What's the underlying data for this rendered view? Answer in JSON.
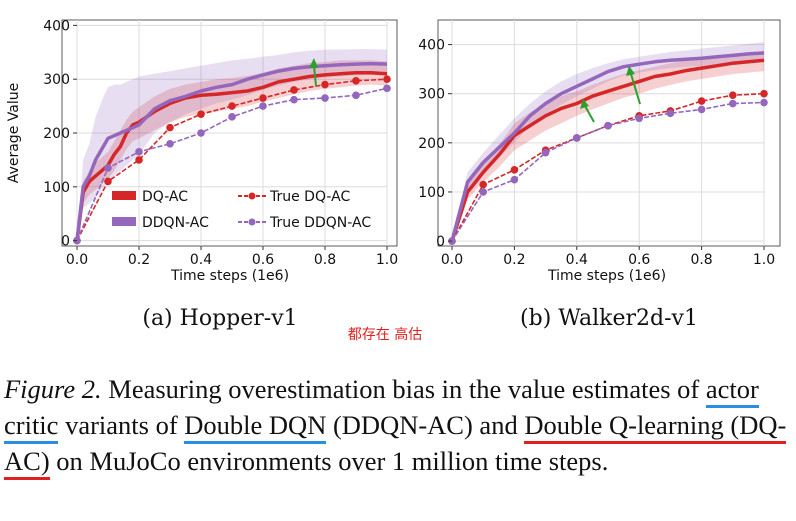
{
  "chart_data": [
    {
      "type": "line",
      "subtitle": "(a) Hopper-v1",
      "xlabel": "Time steps (1e6)",
      "ylabel": "Average Value",
      "xlim": [
        0,
        1.0
      ],
      "ylim": [
        -10,
        410
      ],
      "xticks": [
        0.0,
        0.2,
        0.4,
        0.6,
        0.8,
        1.0
      ],
      "xtick_labels": [
        "0.0",
        "0.2",
        "0.4",
        "0.6",
        "0.8",
        "1.0"
      ],
      "yticks": [
        0,
        100,
        200,
        300,
        400
      ],
      "ytick_labels": [
        "0",
        "100",
        "200",
        "300",
        "400"
      ],
      "grid": true,
      "legend": "bottom-right",
      "series": [
        {
          "name": "DQ-AC",
          "kind": "estimate",
          "color": "#d62728",
          "x": [
            0,
            0.02,
            0.04,
            0.06,
            0.08,
            0.1,
            0.12,
            0.14,
            0.16,
            0.18,
            0.2,
            0.25,
            0.3,
            0.35,
            0.4,
            0.45,
            0.5,
            0.55,
            0.6,
            0.65,
            0.7,
            0.75,
            0.8,
            0.85,
            0.9,
            0.95,
            1.0
          ],
          "y": [
            0,
            90,
            110,
            120,
            130,
            140,
            160,
            175,
            200,
            215,
            220,
            240,
            255,
            265,
            270,
            272,
            275,
            278,
            285,
            295,
            300,
            305,
            308,
            310,
            312,
            312,
            310
          ],
          "band_lower": [
            0,
            70,
            85,
            95,
            105,
            115,
            130,
            150,
            170,
            185,
            190,
            205,
            220,
            230,
            235,
            240,
            245,
            250,
            258,
            265,
            272,
            278,
            282,
            285,
            288,
            290,
            288
          ],
          "band_upper": [
            0,
            110,
            130,
            145,
            155,
            165,
            185,
            205,
            225,
            240,
            248,
            268,
            282,
            290,
            295,
            300,
            302,
            306,
            312,
            320,
            325,
            330,
            332,
            335,
            335,
            335,
            333
          ]
        },
        {
          "name": "DDQN-AC",
          "kind": "estimate",
          "color": "#9467bd",
          "x": [
            0,
            0.02,
            0.04,
            0.06,
            0.08,
            0.1,
            0.12,
            0.14,
            0.16,
            0.18,
            0.2,
            0.25,
            0.3,
            0.35,
            0.4,
            0.45,
            0.5,
            0.55,
            0.6,
            0.65,
            0.7,
            0.75,
            0.8,
            0.85,
            0.9,
            0.95,
            1.0
          ],
          "y": [
            0,
            100,
            120,
            150,
            170,
            190,
            195,
            200,
            205,
            210,
            215,
            245,
            260,
            268,
            278,
            285,
            290,
            300,
            308,
            315,
            320,
            323,
            325,
            327,
            328,
            329,
            328
          ],
          "band_lower": [
            0,
            60,
            70,
            80,
            95,
            110,
            120,
            130,
            140,
            150,
            160,
            200,
            220,
            235,
            245,
            255,
            262,
            270,
            280,
            288,
            295,
            300,
            303,
            305,
            307,
            308,
            307
          ],
          "band_upper": [
            0,
            150,
            180,
            230,
            260,
            285,
            290,
            290,
            295,
            300,
            305,
            310,
            315,
            320,
            325,
            330,
            335,
            338,
            342,
            345,
            350,
            353,
            355,
            355,
            356,
            356,
            355
          ]
        },
        {
          "name": "True DQ-AC",
          "kind": "true",
          "color": "#d62728",
          "x": [
            0,
            0.1,
            0.2,
            0.3,
            0.4,
            0.5,
            0.6,
            0.7,
            0.8,
            0.9,
            1.0
          ],
          "y": [
            0,
            110,
            150,
            210,
            235,
            250,
            265,
            280,
            290,
            297,
            300
          ]
        },
        {
          "name": "True DDQN-AC",
          "kind": "true",
          "color": "#9467bd",
          "x": [
            0,
            0.1,
            0.2,
            0.3,
            0.4,
            0.5,
            0.6,
            0.7,
            0.8,
            0.9,
            1.0
          ],
          "y": [
            0,
            135,
            165,
            180,
            200,
            230,
            250,
            262,
            265,
            270,
            283
          ]
        }
      ]
    },
    {
      "type": "line",
      "subtitle": "(b) Walker2d-v1",
      "xlabel": "Time steps (1e6)",
      "ylabel": "",
      "xlim": [
        0,
        1.0
      ],
      "ylim": [
        -10,
        450
      ],
      "xticks": [
        0.0,
        0.2,
        0.4,
        0.6,
        0.8,
        1.0
      ],
      "xtick_labels": [
        "0.0",
        "0.2",
        "0.4",
        "0.6",
        "0.8",
        "1.0"
      ],
      "yticks": [
        0,
        100,
        200,
        300,
        400
      ],
      "ytick_labels": [
        "0",
        "100",
        "200",
        "300",
        "400"
      ],
      "grid": true,
      "legend": "none",
      "series": [
        {
          "name": "DQ-AC",
          "kind": "estimate",
          "color": "#d62728",
          "x": [
            0,
            0.05,
            0.1,
            0.15,
            0.2,
            0.25,
            0.3,
            0.35,
            0.4,
            0.45,
            0.5,
            0.55,
            0.6,
            0.65,
            0.7,
            0.75,
            0.8,
            0.85,
            0.9,
            0.95,
            1.0
          ],
          "y": [
            0,
            100,
            140,
            175,
            215,
            235,
            255,
            270,
            280,
            295,
            305,
            315,
            325,
            335,
            340,
            347,
            352,
            357,
            362,
            365,
            368
          ],
          "band_lower": [
            0,
            85,
            120,
            150,
            185,
            205,
            225,
            240,
            255,
            268,
            280,
            292,
            300,
            310,
            318,
            325,
            330,
            335,
            340,
            343,
            346
          ],
          "band_upper": [
            0,
            120,
            160,
            195,
            240,
            262,
            280,
            295,
            305,
            318,
            330,
            340,
            348,
            355,
            362,
            368,
            372,
            377,
            380,
            383,
            385
          ]
        },
        {
          "name": "DDQN-AC",
          "kind": "estimate",
          "color": "#9467bd",
          "x": [
            0,
            0.05,
            0.1,
            0.15,
            0.2,
            0.25,
            0.3,
            0.35,
            0.4,
            0.45,
            0.5,
            0.55,
            0.6,
            0.65,
            0.7,
            0.75,
            0.8,
            0.85,
            0.9,
            0.95,
            1.0
          ],
          "y": [
            0,
            120,
            160,
            190,
            220,
            255,
            280,
            300,
            315,
            330,
            345,
            355,
            360,
            365,
            368,
            370,
            372,
            375,
            378,
            381,
            383
          ],
          "band_lower": [
            0,
            100,
            140,
            170,
            200,
            235,
            258,
            278,
            295,
            310,
            325,
            337,
            343,
            348,
            352,
            355,
            357,
            360,
            363,
            366,
            368
          ],
          "band_upper": [
            0,
            140,
            180,
            215,
            250,
            280,
            305,
            325,
            340,
            352,
            362,
            370,
            375,
            380,
            385,
            388,
            392,
            395,
            398,
            402,
            405
          ]
        },
        {
          "name": "True DQ-AC",
          "kind": "true",
          "color": "#d62728",
          "x": [
            0,
            0.1,
            0.2,
            0.3,
            0.4,
            0.5,
            0.6,
            0.7,
            0.8,
            0.9,
            1.0
          ],
          "y": [
            0,
            115,
            145,
            185,
            210,
            235,
            255,
            265,
            285,
            297,
            300
          ]
        },
        {
          "name": "True DDQN-AC",
          "kind": "true",
          "color": "#9467bd",
          "x": [
            0,
            0.1,
            0.2,
            0.3,
            0.4,
            0.5,
            0.6,
            0.7,
            0.8,
            0.9,
            1.0
          ],
          "y": [
            0,
            100,
            125,
            180,
            210,
            235,
            250,
            260,
            268,
            280,
            282
          ]
        }
      ]
    }
  ],
  "annotation": "都存在 高估",
  "caption": {
    "label": "Figure 2.",
    "t1": " Measuring overestimation bias in the value estimates of ",
    "actor_critic": "actor critic",
    "t2": " variants of ",
    "double_dqn": "Double DQN",
    "t3": " (DDQN-AC) and ",
    "double_q1": "Double Q-",
    "double_q2": "learning (DQ-AC)",
    "t4": " on MuJoCo environments over 1 million time steps."
  },
  "colors": {
    "red": "#d62728",
    "purple": "#9467bd",
    "grid": "#dcdcdc",
    "arrow": "#2ca02c"
  }
}
